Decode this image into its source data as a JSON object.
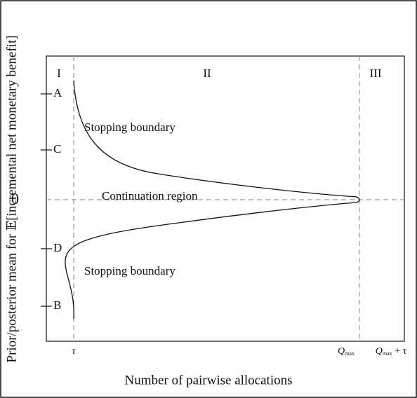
{
  "regions": [
    "I",
    "II",
    "III"
  ],
  "y_axis": {
    "label": "Prior/posterior mean for 𝔼[incremental net monetary benefit]",
    "ticks": [
      "A",
      "C",
      "0",
      "D",
      "B"
    ]
  },
  "x_axis": {
    "label": "Number of pairwise allocations",
    "ticks": [
      {
        "base": "τ"
      },
      {
        "base": "Q",
        "sub": "max"
      },
      {
        "base": "Q",
        "sub": "max",
        "rest": " + τ"
      }
    ]
  },
  "annotations": [
    "Stopping boundary",
    "Continuation region",
    "Stopping boundary"
  ]
}
